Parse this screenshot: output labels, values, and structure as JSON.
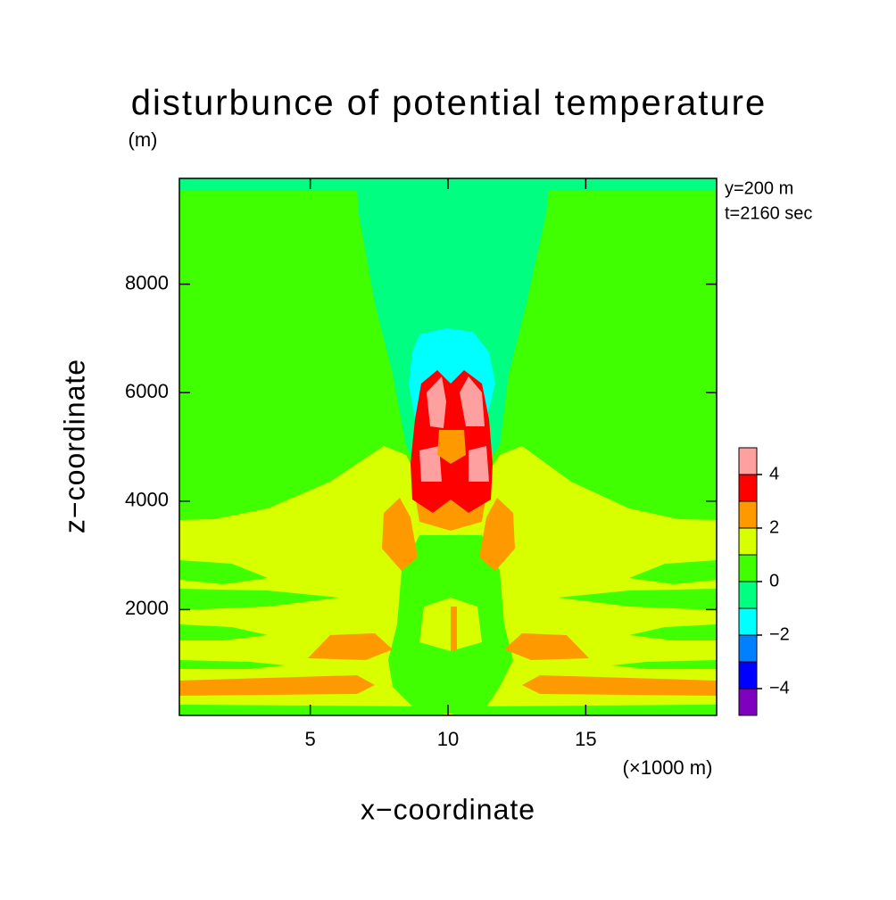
{
  "chart_data": {
    "type": "contour",
    "title": "disturbunce of potential temperature",
    "ylabel_unit": "(m)",
    "xlabel": "x−coordinate",
    "ylabel": "z−coordinate",
    "xlabel_unit": "(×1000 m)",
    "annotations": [
      "y=200 m",
      "t=2160 sec"
    ],
    "xlim": [
      0.25,
      19.75
    ],
    "ylim": [
      50,
      9950
    ],
    "xticks": [
      5,
      10,
      15
    ],
    "yticks": [
      2000,
      4000,
      6000,
      8000
    ],
    "levels": [
      -5,
      -4,
      -3,
      -2,
      -1,
      0,
      1,
      2,
      3,
      4,
      5
    ],
    "level_colors": [
      "#7f00bf",
      "#0000ff",
      "#0080ff",
      "#00ffff",
      "#00ff80",
      "#40ff00",
      "#d8ff00",
      "#ff9900",
      "#ff0000",
      "#ffa0a0"
    ],
    "colorbar_ticks": [
      {
        "value": -4,
        "label": "−4"
      },
      {
        "value": -2,
        "label": "−2"
      },
      0,
      2,
      4
    ]
  }
}
